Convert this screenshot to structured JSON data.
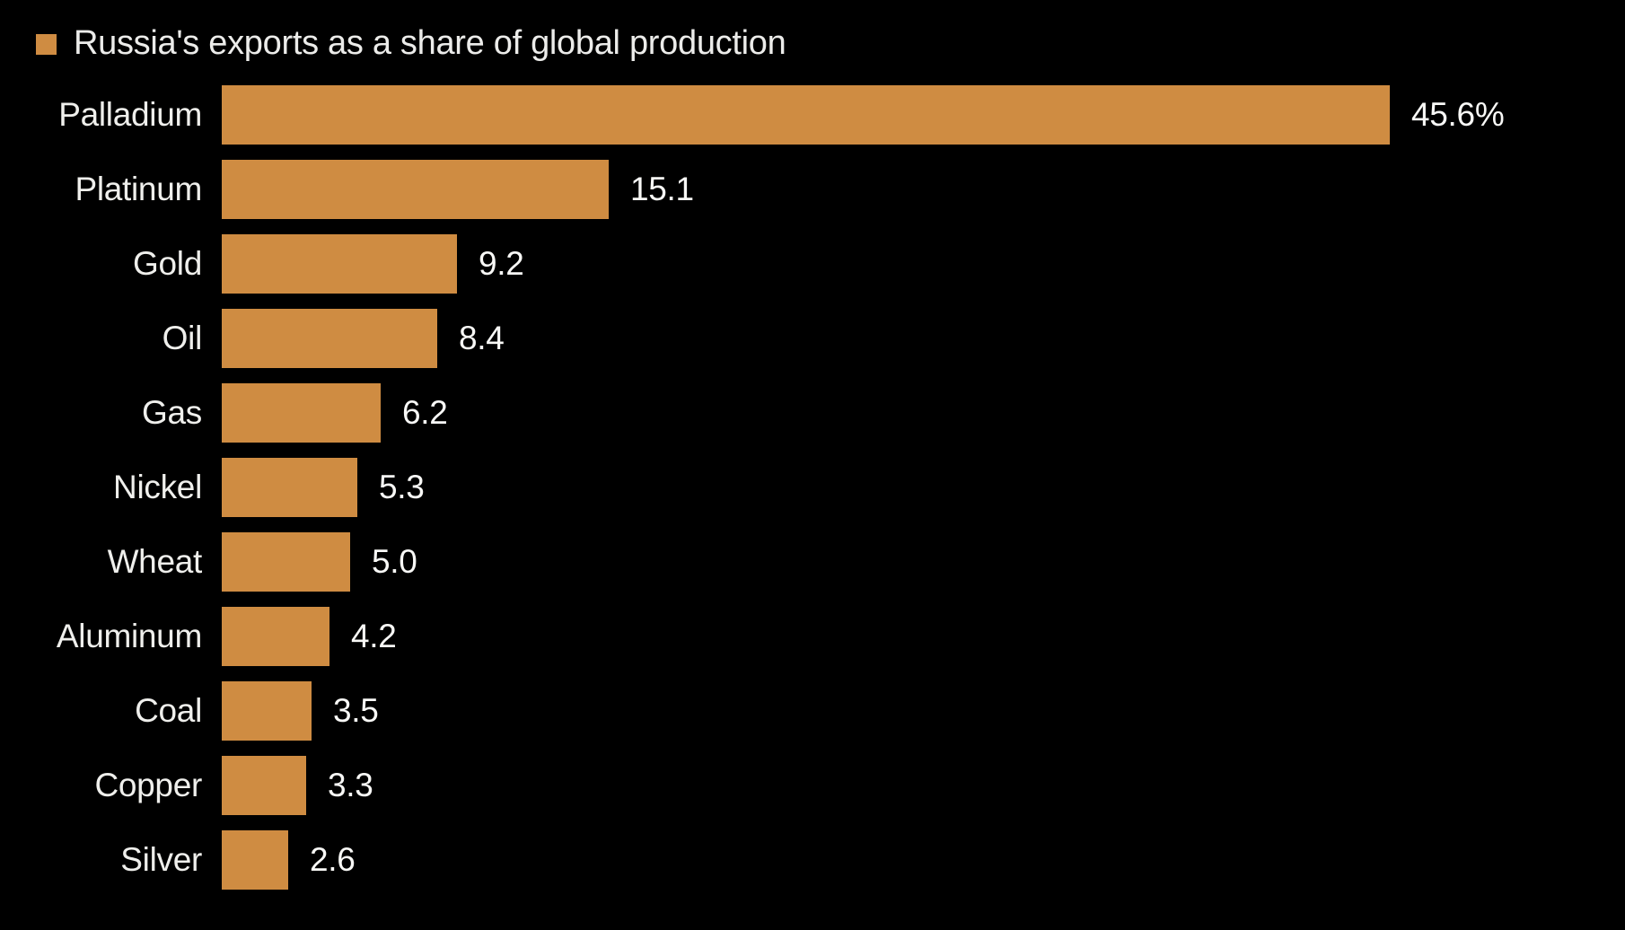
{
  "chart_data": {
    "type": "bar",
    "orientation": "horizontal",
    "title": "",
    "legend": "Russia's exports as a share of global production",
    "legend_position": "top-left",
    "categories": [
      "Palladium",
      "Platinum",
      "Gold",
      "Oil",
      "Gas",
      "Nickel",
      "Wheat",
      "Aluminum",
      "Coal",
      "Copper",
      "Silver"
    ],
    "values": [
      45.6,
      15.1,
      9.2,
      8.4,
      6.2,
      5.3,
      5.0,
      4.2,
      3.5,
      3.3,
      2.6
    ],
    "value_labels": [
      "45.6%",
      "15.1",
      "9.2",
      "8.4",
      "6.2",
      "5.3",
      "5.0",
      "4.2",
      "3.5",
      "3.3",
      "2.6"
    ],
    "unit": "%",
    "xlim": [
      0,
      45.6
    ],
    "grid": false,
    "colors": {
      "bar": "#cf8c42",
      "background": "#000000",
      "category_label": "#efefec",
      "value_label": "#f8f8f6",
      "legend_text": "#ececea"
    }
  }
}
